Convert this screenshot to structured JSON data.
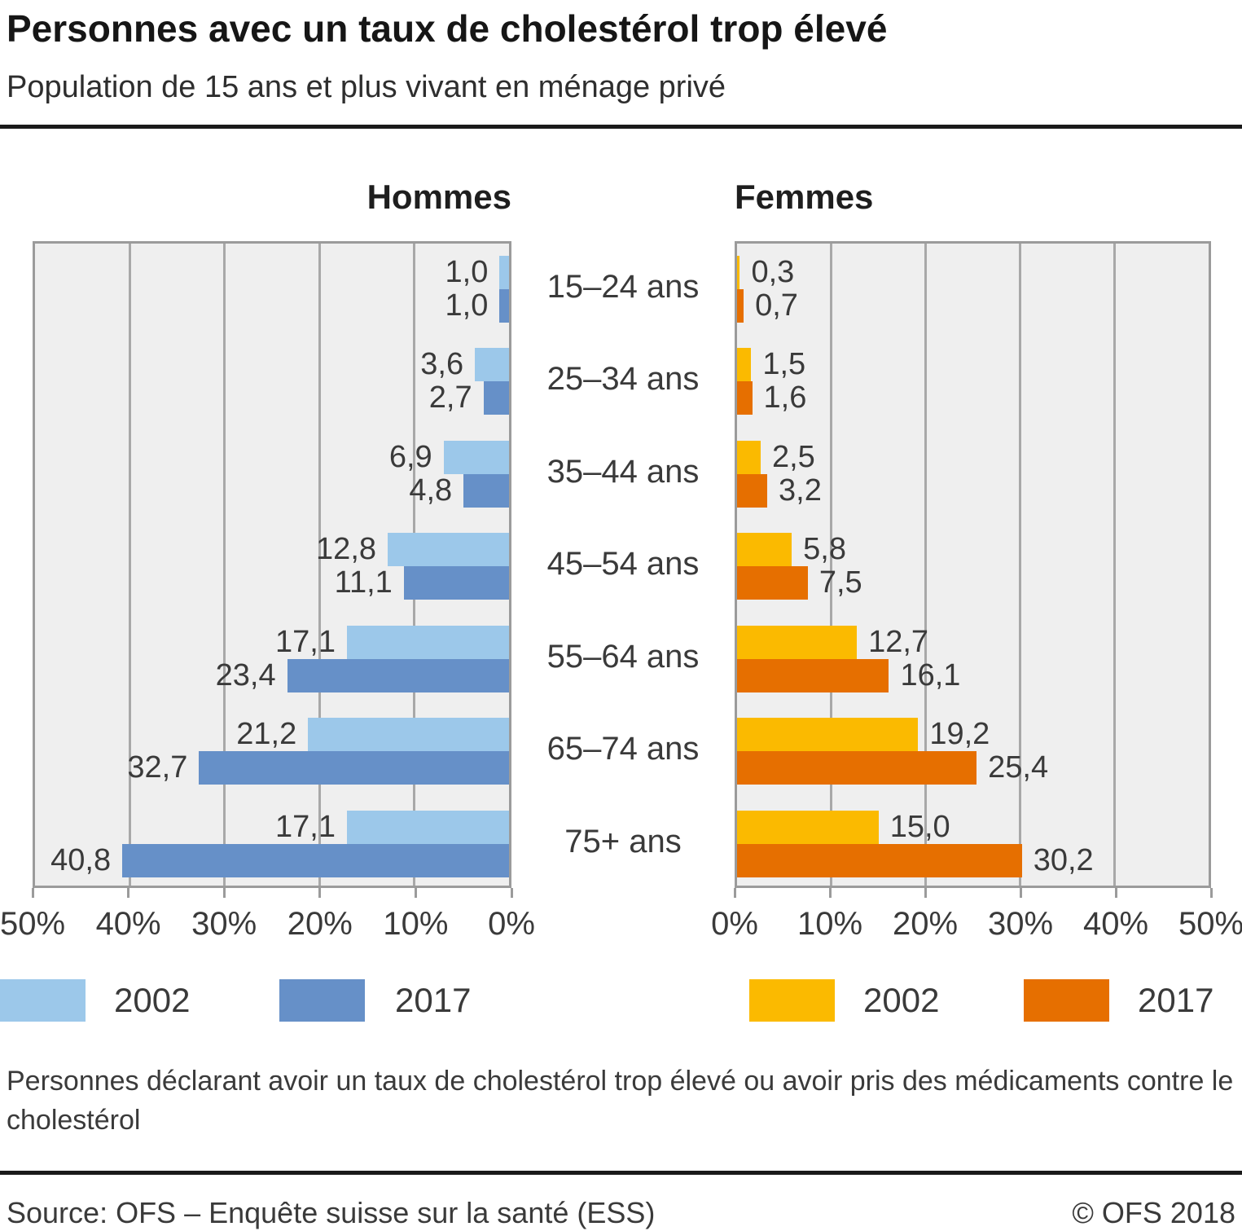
{
  "title": "Personnes avec un taux de cholestérol trop élevé",
  "subtitle": "Population de 15 ans et plus vivant en ménage privé",
  "footnote": "Personnes déclarant avoir un taux de cholestérol trop élevé ou avoir pris des médicaments contre le cholestérol",
  "source": "Source: OFS – Enquête suisse sur la santé (ESS)",
  "copyright": "© OFS 2018",
  "chart_data": {
    "type": "bar",
    "orientation": "horizontal-pyramid",
    "unit": "%",
    "xlim": [
      0,
      50
    ],
    "grid": true,
    "legend_position": "bottom",
    "plot_background": "#efefef",
    "grid_color": "#a8a8a8",
    "decimal_separator": ",",
    "categories": [
      "15–24 ans",
      "25–34 ans",
      "35–44 ans",
      "45–54 ans",
      "55–64 ans",
      "65–74 ans",
      "75+ ans"
    ],
    "panels": [
      {
        "id": "hommes",
        "title": "Hommes",
        "direction": "left",
        "axis_ticks": [
          "50%",
          "40%",
          "30%",
          "20%",
          "10%",
          "0%"
        ],
        "series": [
          {
            "name": "2002",
            "color": "#9cc8ea",
            "values": [
              1.0,
              3.6,
              6.9,
              12.8,
              17.1,
              21.2,
              17.1
            ]
          },
          {
            "name": "2017",
            "color": "#6690c8",
            "values": [
              1.0,
              2.7,
              4.8,
              11.1,
              23.4,
              32.7,
              40.8
            ]
          }
        ]
      },
      {
        "id": "femmes",
        "title": "Femmes",
        "direction": "right",
        "axis_ticks": [
          "0%",
          "10%",
          "20%",
          "30%",
          "40%",
          "50%"
        ],
        "series": [
          {
            "name": "2002",
            "color": "#fbba00",
            "values": [
              0.3,
              1.5,
              2.5,
              5.8,
              12.7,
              19.2,
              15.0
            ]
          },
          {
            "name": "2017",
            "color": "#e66f00",
            "values": [
              0.7,
              1.6,
              3.2,
              7.5,
              16.1,
              25.4,
              30.2
            ]
          }
        ]
      }
    ]
  }
}
